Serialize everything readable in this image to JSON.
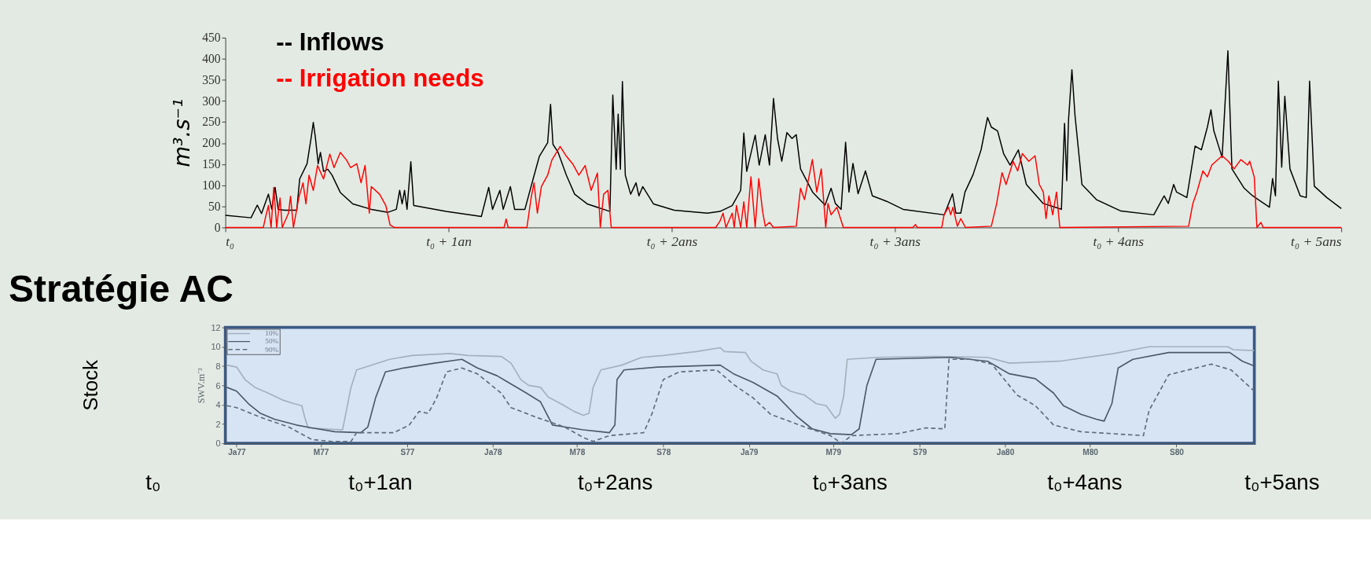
{
  "chart_data": [
    {
      "type": "line",
      "ylabel": "m³.s⁻¹",
      "xlim": [
        0,
        5
      ],
      "xticks": [
        {
          "value": 0,
          "label": "t₀"
        },
        {
          "value": 1,
          "label": "t₀ + 1an"
        },
        {
          "value": 2,
          "label": "t₀ + 2ans"
        },
        {
          "value": 3,
          "label": "t₀ + 3ans"
        },
        {
          "value": 4,
          "label": "t₀ + 4ans"
        },
        {
          "value": 5,
          "label": "t₀ + 5ans"
        }
      ],
      "ylim": [
        0,
        450
      ],
      "yticks": [
        0,
        50,
        100,
        150,
        200,
        250,
        300,
        350,
        400,
        450
      ],
      "legend": "top left",
      "series": [
        {
          "name": "-- Inflows",
          "color": "#000000",
          "x": [
            0,
            0.115,
            0.143,
            0.162,
            0.193,
            0.208,
            0.223,
            0.237,
            0.264,
            0.32,
            0.333,
            0.366,
            0.385,
            0.394,
            0.403,
            0.416,
            0.426,
            0.44,
            0.459,
            0.478,
            0.515,
            0.571,
            0.654,
            0.729,
            0.766,
            0.781,
            0.792,
            0.803,
            0.814,
            0.831,
            0.844,
            0.989,
            1.147,
            1.18,
            1.197,
            1.23,
            1.245,
            1.277,
            1.296,
            1.342,
            1.379,
            1.407,
            1.444,
            1.457,
            1.468,
            1.491,
            1.528,
            1.565,
            1.621,
            1.695,
            1.723,
            1.736,
            1.751,
            1.76,
            1.77,
            1.779,
            1.792,
            1.816,
            1.84,
            1.853,
            1.87,
            1.918,
            2.011,
            2.16,
            2.216,
            2.271,
            2.309,
            2.323,
            2.336,
            2.374,
            2.392,
            2.419,
            2.438,
            2.456,
            2.474,
            2.493,
            2.516,
            2.539,
            2.558,
            2.577,
            2.631,
            2.687,
            2.714,
            2.733,
            2.759,
            2.779,
            2.794,
            2.812,
            2.835,
            2.868,
            2.899,
            2.963,
            3.037,
            3.221,
            3.258,
            3.273,
            3.295,
            3.314,
            3.35,
            3.386,
            3.415,
            3.432,
            3.46,
            3.487,
            3.516,
            3.553,
            3.589,
            3.664,
            3.719,
            3.746,
            3.76,
            3.77,
            3.778,
            3.793,
            3.807,
            3.838,
            3.903,
            4.013,
            4.16,
            4.206,
            4.225,
            4.249,
            4.262,
            4.308,
            4.345,
            4.373,
            4.4,
            4.416,
            4.429,
            4.466,
            4.492,
            4.51,
            4.565,
            4.603,
            4.678,
            4.692,
            4.705,
            4.718,
            4.733,
            4.747,
            4.77,
            4.816,
            4.843,
            4.858,
            4.879,
            4.935,
            5.0
          ],
          "values": [
            29,
            23,
            53,
            33,
            79,
            43,
            95,
            43,
            41,
            41,
            115,
            151,
            215,
            249,
            215,
            151,
            178,
            133,
            138,
            124,
            83,
            56,
            43,
            36,
            43,
            88,
            56,
            88,
            43,
            156,
            52,
            38,
            26,
            95,
            43,
            88,
            43,
            97,
            43,
            43,
            115,
            169,
            201,
            292,
            197,
            178,
            124,
            79,
            56,
            43,
            38,
            314,
            138,
            269,
            138,
            346,
            124,
            79,
            106,
            75,
            97,
            56,
            41,
            34,
            38,
            52,
            88,
            224,
            133,
            219,
            148,
            220,
            148,
            306,
            211,
            157,
            225,
            211,
            220,
            139,
            84,
            53,
            93,
            57,
            43,
            202,
            84,
            152,
            80,
            134,
            75,
            62,
            43,
            30,
            80,
            34,
            34,
            84,
            125,
            184,
            261,
            238,
            229,
            175,
            148,
            184,
            102,
            57,
            48,
            43,
            247,
            111,
            256,
            374,
            265,
            102,
            66,
            39,
            30,
            75,
            57,
            102,
            84,
            71,
            193,
            184,
            238,
            279,
            229,
            166,
            419,
            139,
            93,
            75,
            48,
            116,
            75,
            347,
            143,
            311,
            139,
            75,
            71,
            347,
            98,
            71,
            45
          ]
        },
        {
          "name": "-- Irrigation needs",
          "color": "#ff0000",
          "x": [
            0,
            0.17,
            0.18,
            0.193,
            0.205,
            0.217,
            0.23,
            0.245,
            0.255,
            0.283,
            0.292,
            0.305,
            0.329,
            0.348,
            0.361,
            0.375,
            0.394,
            0.413,
            0.44,
            0.468,
            0.487,
            0.515,
            0.543,
            0.561,
            0.589,
            0.608,
            0.626,
            0.645,
            0.654,
            0.691,
            0.719,
            0.738,
            0.757,
            1.249,
            1.258,
            1.267,
            1.351,
            1.37,
            1.383,
            1.398,
            1.416,
            1.444,
            1.463,
            1.5,
            1.528,
            1.556,
            1.584,
            1.612,
            1.639,
            1.667,
            1.68,
            1.695,
            1.714,
            1.729,
            2.197,
            2.216,
            2.23,
            2.243,
            2.271,
            2.28,
            2.29,
            2.309,
            2.323,
            2.336,
            2.355,
            2.374,
            2.39,
            2.407,
            2.419,
            2.438,
            2.456,
            2.558,
            2.577,
            2.595,
            2.63,
            2.65,
            2.67,
            2.69,
            2.7,
            2.714,
            2.74,
            2.769,
            3.08,
            3.092,
            3.1,
            3.21,
            3.22,
            3.24,
            3.25,
            3.26,
            3.28,
            3.295,
            3.316,
            3.432,
            3.456,
            3.48,
            3.498,
            3.53,
            3.55,
            3.571,
            3.6,
            3.628,
            3.647,
            3.665,
            3.677,
            3.69,
            3.707,
            3.724,
            3.739,
            4.316,
            4.335,
            4.353,
            4.38,
            4.4,
            4.42,
            4.466,
            4.494,
            4.52,
            4.55,
            4.58,
            4.59,
            4.61,
            4.622,
            4.64,
            4.65,
            5.0
          ],
          "values": [
            0,
            0,
            24,
            52,
            0,
            95,
            0,
            70,
            0,
            34,
            74,
            0,
            70,
            106,
            56,
            124,
            88,
            147,
            115,
            174,
            142,
            178,
            160,
            142,
            151,
            106,
            147,
            34,
            97,
            79,
            52,
            6,
            0,
            0,
            20,
            0,
            0,
            70,
            106,
            34,
            97,
            124,
            160,
            192,
            169,
            151,
            124,
            147,
            88,
            129,
            0,
            79,
            88,
            0,
            0,
            15,
            34,
            0,
            34,
            0,
            52,
            0,
            61,
            0,
            120,
            0,
            116,
            39,
            3,
            12,
            0,
            3,
            93,
            66,
            161,
            84,
            139,
            0,
            57,
            30,
            48,
            0,
            0,
            7,
            0,
            0,
            30,
            48,
            30,
            48,
            3,
            21,
            0,
            3,
            57,
            130,
            102,
            157,
            134,
            175,
            157,
            170,
            102,
            84,
            21,
            75,
            30,
            84,
            0,
            3,
            57,
            84,
            134,
            120,
            148,
            170,
            157,
            139,
            161,
            148,
            157,
            120,
            0,
            12,
            0,
            0
          ]
        }
      ]
    },
    {
      "type": "line",
      "title": "Stratégie AC",
      "ylabel": "SWV.m⁻³",
      "annotations": [
        "Stock",
        "t₀",
        "t₀+1an",
        "t₀+2ans",
        "t₀+3ans",
        "t₀+4ans",
        "t₀+5ans"
      ],
      "xlim": [
        "1976-12-16",
        "1980-12-21"
      ],
      "xticks": [
        {
          "value": "1977-01",
          "label": "Ja77"
        },
        {
          "value": "1977-05",
          "label": "M77"
        },
        {
          "value": "1977-09",
          "label": "S77"
        },
        {
          "value": "1978-01",
          "label": "Ja78"
        },
        {
          "value": "1978-05",
          "label": "M78"
        },
        {
          "value": "1978-09",
          "label": "S78"
        },
        {
          "value": "1979-01",
          "label": "Ja79"
        },
        {
          "value": "1979-05",
          "label": "M79"
        },
        {
          "value": "1979-09",
          "label": "S79"
        },
        {
          "value": "1980-01",
          "label": "Ja80"
        },
        {
          "value": "1980-05",
          "label": "M80"
        },
        {
          "value": "1980-09",
          "label": "S80"
        }
      ],
      "ylim": [
        0,
        12
      ],
      "yticks": [
        0,
        2,
        4,
        6,
        8,
        10,
        12
      ],
      "legend": "top left",
      "series": [
        {
          "name": "10%",
          "color": "#a3b0bd",
          "line_style": "solid",
          "x": [
            "1976-12-18",
            "1977-01-01",
            "1977-01-13",
            "1977-01-27",
            "1977-02-15",
            "1977-03-07",
            "1977-03-24",
            "1977-04-04",
            "1977-04-08",
            "1977-04-13",
            "1977-06-01",
            "1977-06-13",
            "1977-06-21",
            "1977-07-04",
            "1977-08-07",
            "1977-09-08",
            "1977-11-01",
            "1977-11-27",
            "1978-01-13",
            "1978-01-27",
            "1978-02-10",
            "1978-02-21",
            "1978-03-10",
            "1978-03-21",
            "1978-04-13",
            "1978-04-27",
            "1978-05-10",
            "1978-05-18",
            "1978-05-24",
            "1978-06-04",
            "1978-07-04",
            "1978-08-01",
            "1978-09-01",
            "1978-10-18",
            "1978-11-21",
            "1978-11-27",
            "1978-12-27",
            "1979-01-04",
            "1979-01-21",
            "1979-02-10",
            "1979-02-16",
            "1979-03-01",
            "1979-03-21",
            "1979-04-07",
            "1979-04-21",
            "1979-05-04",
            "1979-05-10",
            "1979-05-16",
            "1979-05-21",
            "1979-07-04",
            "1979-09-24",
            "1979-12-07",
            "1980-01-07",
            "1980-03-18",
            "1980-06-04",
            "1980-07-24",
            "1980-11-13",
            "1980-11-21",
            "1980-12-21"
          ],
          "values": [
            8.1,
            7.9,
            6.6,
            5.8,
            5.2,
            4.5,
            4.1,
            3.9,
            2.7,
            1.6,
            1.4,
            5.8,
            7.6,
            7.9,
            8.7,
            9.1,
            9.3,
            9.1,
            9.0,
            8.3,
            6.6,
            6.0,
            5.8,
            4.8,
            3.9,
            3.3,
            2.9,
            3.1,
            5.8,
            7.6,
            8.1,
            8.9,
            9.1,
            9.5,
            9.9,
            9.5,
            9.4,
            8.5,
            7.6,
            7.2,
            6.0,
            5.4,
            5.0,
            4.1,
            3.9,
            2.6,
            3.0,
            4.9,
            8.7,
            8.9,
            9.0,
            8.9,
            8.3,
            8.5,
            9.3,
            10.0,
            10.0,
            9.7,
            9.6
          ]
        },
        {
          "name": "50%",
          "color": "#4b5a69",
          "line_style": "solid",
          "x": [
            "1976-12-18",
            "1977-01-01",
            "1977-01-18",
            "1977-02-04",
            "1977-02-24",
            "1977-03-27",
            "1977-04-18",
            "1977-05-21",
            "1977-06-27",
            "1977-07-07",
            "1977-07-18",
            "1977-08-01",
            "1977-08-27",
            "1977-10-10",
            "1977-11-18",
            "1977-12-10",
            "1978-01-07",
            "1978-01-21",
            "1978-02-18",
            "1978-03-10",
            "1978-03-27",
            "1978-04-13",
            "1978-05-10",
            "1978-06-16",
            "1978-06-24",
            "1978-06-27",
            "1978-07-07",
            "1978-08-24",
            "1978-11-21",
            "1978-12-10",
            "1979-01-07",
            "1979-02-10",
            "1979-03-10",
            "1979-04-01",
            "1979-04-27",
            "1979-05-27",
            "1979-06-07",
            "1979-06-18",
            "1979-07-01",
            "1979-10-16",
            "1979-12-07",
            "1980-01-07",
            "1980-02-13",
            "1980-03-10",
            "1980-03-24",
            "1980-04-18",
            "1980-05-10",
            "1980-05-21",
            "1980-06-01",
            "1980-06-10",
            "1980-07-01",
            "1980-08-21",
            "1980-11-16",
            "1980-12-04",
            "1980-12-21"
          ],
          "values": [
            5.8,
            5.4,
            4.1,
            3.1,
            2.5,
            1.9,
            1.6,
            1.2,
            1.1,
            1.7,
            4.7,
            7.4,
            7.8,
            8.3,
            8.7,
            7.8,
            7.0,
            6.4,
            5.2,
            4.3,
            1.9,
            1.7,
            1.4,
            1.1,
            1.9,
            6.6,
            7.6,
            7.9,
            8.1,
            7.2,
            6.3,
            4.9,
            2.8,
            1.5,
            1.0,
            0.9,
            1.5,
            6.0,
            8.7,
            8.9,
            8.5,
            7.2,
            6.7,
            5.2,
            3.9,
            3.0,
            2.5,
            2.3,
            4.1,
            7.8,
            8.7,
            9.4,
            9.4,
            8.5,
            8.0
          ]
        },
        {
          "name": "90%",
          "color": "#5e6d7c",
          "line_style": "dashed",
          "x": [
            "1976-12-18",
            "1977-01-01",
            "1977-02-04",
            "1977-03-16",
            "1977-04-18",
            "1977-05-16",
            "1977-06-13",
            "1977-06-21",
            "1977-08-13",
            "1977-09-04",
            "1977-09-18",
            "1977-10-01",
            "1977-10-13",
            "1977-10-27",
            "1977-11-18",
            "1977-12-10",
            "1978-01-13",
            "1978-01-27",
            "1978-03-04",
            "1978-04-13",
            "1978-05-10",
            "1978-05-24",
            "1978-06-16",
            "1978-08-04",
            "1978-08-16",
            "1978-09-01",
            "1978-09-24",
            "1978-11-16",
            "1978-12-10",
            "1979-01-07",
            "1979-02-01",
            "1979-03-21",
            "1979-04-27",
            "1979-05-13",
            "1979-05-27",
            "1979-08-01",
            "1979-09-10",
            "1979-10-07",
            "1979-10-13",
            "1979-11-13",
            "1979-12-13",
            "1980-01-18",
            "1980-02-13",
            "1980-03-10",
            "1980-04-18",
            "1980-07-16",
            "1980-07-24",
            "1980-08-21",
            "1980-10-21",
            "1980-11-18",
            "1980-12-21"
          ],
          "values": [
            3.9,
            3.7,
            2.7,
            1.7,
            0.4,
            0.2,
            0.2,
            1.1,
            1.1,
            1.9,
            3.3,
            3.1,
            4.7,
            7.4,
            7.8,
            7.2,
            5.2,
            3.7,
            2.7,
            1.7,
            0.6,
            0.2,
            0.8,
            1.1,
            3.1,
            6.6,
            7.4,
            7.6,
            6.1,
            4.7,
            3.0,
            1.7,
            0.8,
            0,
            0.8,
            1.0,
            1.6,
            1.5,
            8.7,
            8.7,
            8.2,
            5.0,
            3.9,
            1.9,
            1.2,
            0.8,
            3.4,
            7.1,
            8.2,
            7.6,
            5.4
          ]
        }
      ]
    }
  ]
}
